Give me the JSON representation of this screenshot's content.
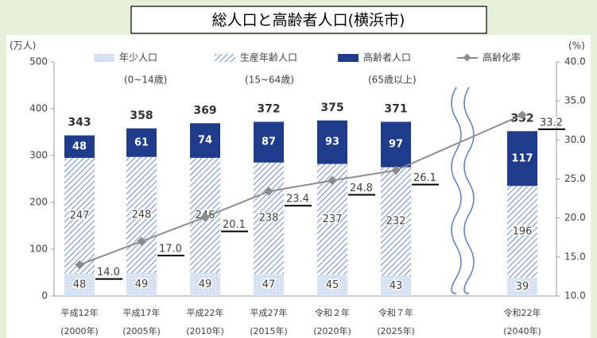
{
  "chart_data": {
    "type": "bar",
    "title": "総人口と高齢者人口(横浜市)",
    "y_axis_label": "(万人)",
    "y2_axis_label": "(%)",
    "categories": [
      "平成12年",
      "平成17年",
      "平成22年",
      "平成27年",
      "令和２年",
      "令和７年",
      "令和22年"
    ],
    "category_sublabels": [
      "(2000年)",
      "(2005年)",
      "(2010年)",
      "(2015年)",
      "(2020年)",
      "(2025年)",
      "(2040年)"
    ],
    "series": [
      {
        "name": "年少人口",
        "note": "(0~14歳)",
        "color": "#dbe5f4",
        "values": [
          48,
          49,
          49,
          47,
          45,
          43,
          39
        ]
      },
      {
        "name": "生産年齢人口",
        "note": "(15~64歳)",
        "color": "#4a6fc0",
        "values": [
          247,
          248,
          246,
          238,
          237,
          232,
          196
        ]
      },
      {
        "name": "高齢者人口",
        "note": "(65歳以上)",
        "color": "#1f3c8c",
        "values": [
          48,
          61,
          74,
          87,
          93,
          97,
          117
        ]
      },
      {
        "name": "高齢化率",
        "type": "line",
        "axis": "y2",
        "color": "#8c8c8c",
        "values": [
          14.0,
          17.0,
          20.1,
          23.4,
          24.8,
          26.1,
          33.2
        ],
        "value_labels": [
          "14.0",
          "17.0",
          "20.1",
          "23.4",
          "24.8",
          "26.1",
          "33.2"
        ]
      }
    ],
    "totals": [
      343,
      358,
      369,
      372,
      375,
      371,
      352
    ],
    "ylim": [
      0,
      500
    ],
    "yticks": [
      0,
      100,
      200,
      300,
      400,
      500
    ],
    "y2lim": [
      10,
      40
    ],
    "y2ticks": [
      {
        "value": 10,
        "label": "10.0"
      },
      {
        "value": 15,
        "label": "15.0"
      },
      {
        "value": 20,
        "label": "20.0"
      },
      {
        "value": 25,
        "label": "25.0"
      },
      {
        "value": 30,
        "label": "30.0"
      },
      {
        "value": 35,
        "label": "35.0"
      },
      {
        "value": 40,
        "label": "40.0"
      }
    ]
  }
}
